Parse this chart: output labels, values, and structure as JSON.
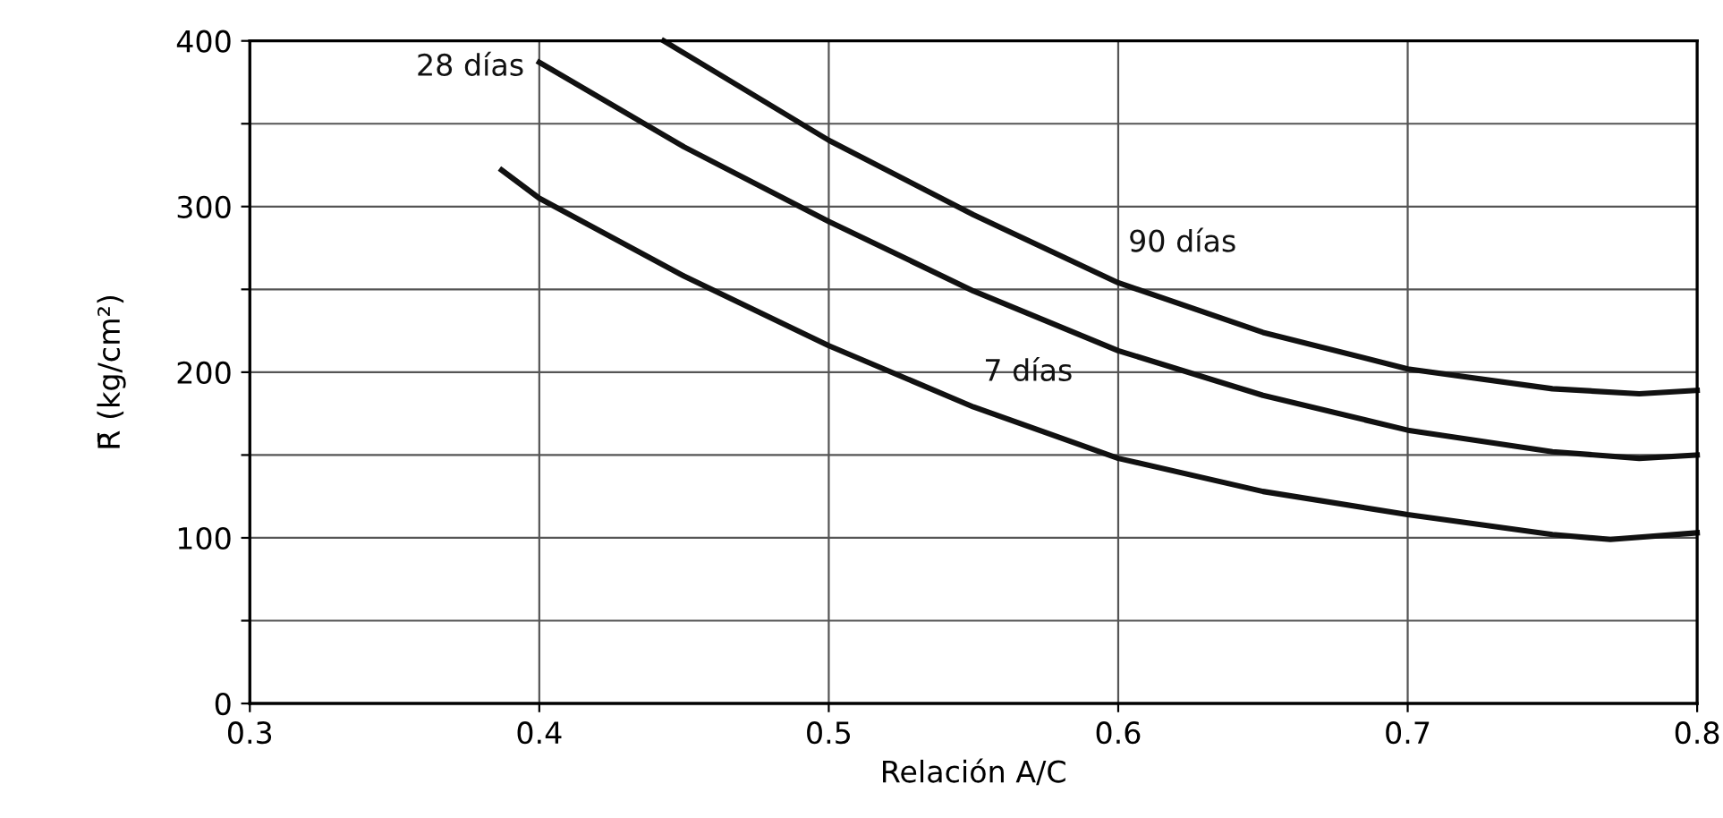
{
  "chart_data": {
    "type": "line",
    "xlabel": "Relación A/C",
    "ylabel": "R̄ (kg/cm²)",
    "xlim": [
      0.3,
      0.8
    ],
    "ylim": [
      0,
      400
    ],
    "xticks": [
      0.3,
      0.4,
      0.5,
      0.6,
      0.7,
      0.8
    ],
    "yticks": [
      0,
      {
        "value": 50,
        "label": null
      },
      100,
      {
        "value": 150,
        "label": null
      },
      200,
      {
        "value": 250,
        "label": null
      },
      300,
      {
        "value": 350,
        "label": null
      },
      400
    ],
    "grid": true,
    "legend": false,
    "marker": "none",
    "line_style": "solid",
    "series": [
      {
        "name": "28 días",
        "color": "#111111",
        "x": [
          0.4,
          0.45,
          0.5,
          0.55,
          0.6,
          0.65,
          0.7,
          0.75,
          0.78,
          0.8
        ],
        "values": [
          387,
          336,
          291,
          249,
          213,
          186,
          165,
          152,
          148,
          150
        ]
      },
      {
        "name": "90 días",
        "color": "#111111",
        "x": [
          0.443,
          0.5,
          0.55,
          0.6,
          0.65,
          0.7,
          0.75,
          0.78,
          0.8
        ],
        "values": [
          400,
          340,
          295,
          254,
          224,
          202,
          190,
          187,
          189
        ]
      },
      {
        "name": "7 días",
        "color": "#111111",
        "x": [
          0.387,
          0.4,
          0.45,
          0.5,
          0.55,
          0.6,
          0.65,
          0.7,
          0.75,
          0.77,
          0.8
        ],
        "values": [
          322,
          305,
          258,
          216,
          179,
          148,
          128,
          114,
          102,
          99,
          103
        ]
      }
    ]
  }
}
